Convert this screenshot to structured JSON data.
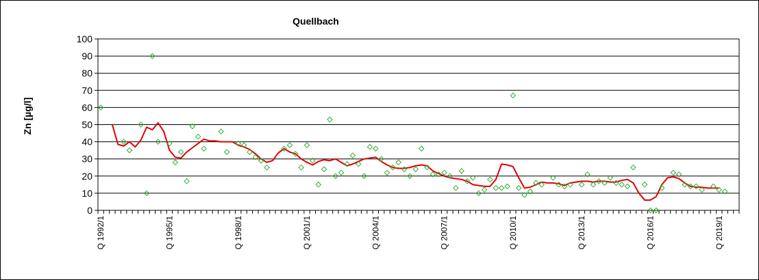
{
  "chart_data": {
    "type": "scatter",
    "title": "Quellbach",
    "ylabel": "Zn [µg/l]",
    "xlabel": "",
    "ylim": [
      0,
      100
    ],
    "yticks": [
      0,
      10,
      20,
      30,
      40,
      50,
      60,
      70,
      80,
      90,
      100
    ],
    "grid": "horizontal",
    "legend": "none",
    "x_categories_start": "Q 1992/1",
    "x_categories_count": 112,
    "x_tick_labels": [
      {
        "index": 0,
        "label": "Q 1992/1"
      },
      {
        "index": 12,
        "label": "Q 1995/1"
      },
      {
        "index": 24,
        "label": "Q 1998/1"
      },
      {
        "index": 36,
        "label": "Q 2001/1"
      },
      {
        "index": 48,
        "label": "Q 2004/1"
      },
      {
        "index": 60,
        "label": "Q 2007/1"
      },
      {
        "index": 72,
        "label": "Q 2010/1"
      },
      {
        "index": 84,
        "label": "Q 2013/1"
      },
      {
        "index": 96,
        "label": "Q 2016/1"
      },
      {
        "index": 108,
        "label": "Q 2019/1"
      }
    ],
    "colors": {
      "points": "#33aa33",
      "line": "#e00000",
      "grid": "#000000"
    },
    "series": [
      {
        "type": "scatter",
        "marker": "diamond-open",
        "values": [
          60,
          null,
          null,
          null,
          40,
          35,
          null,
          50,
          10,
          90,
          40,
          null,
          39,
          28,
          34,
          17,
          49,
          43,
          36,
          null,
          null,
          46,
          34,
          null,
          39,
          38,
          34,
          31,
          29,
          25,
          null,
          null,
          36,
          38,
          33,
          25,
          38,
          29,
          15,
          24,
          53,
          20,
          22,
          27,
          32,
          27,
          20,
          37,
          36,
          30,
          22,
          25,
          28,
          24,
          20,
          24,
          36,
          25,
          21,
          21,
          22,
          20,
          13,
          23,
          17,
          19,
          10,
          12,
          18,
          13,
          13,
          14,
          67,
          13,
          9,
          11,
          16,
          15,
          null,
          19,
          15,
          14,
          15,
          null,
          15,
          21,
          15,
          17,
          16,
          19,
          16,
          15,
          14,
          25,
          null,
          15,
          0,
          0,
          13,
          null,
          22,
          21,
          15,
          14,
          14,
          12,
          null,
          14,
          12,
          11,
          null,
          null
        ]
      },
      {
        "type": "line",
        "values": [
          null,
          null,
          50,
          38.5,
          37.5,
          40,
          37,
          41,
          48.5,
          47,
          51,
          46,
          35,
          31,
          30.5,
          34,
          36.5,
          39,
          41.5,
          40.5,
          40.5,
          40,
          40,
          40,
          38,
          37,
          35.5,
          33,
          30,
          28,
          29,
          33.5,
          36,
          34,
          33,
          30,
          28,
          26.5,
          28.5,
          29.5,
          29,
          30,
          28,
          26,
          27,
          28.5,
          30,
          30.5,
          31,
          28.5,
          26.5,
          25,
          24.5,
          24.5,
          25,
          26,
          26.5,
          26,
          23,
          21.5,
          20,
          19,
          18.5,
          18,
          17,
          15,
          14.5,
          14,
          14,
          18,
          27,
          26.5,
          25.5,
          19,
          13,
          13.5,
          15,
          16.5,
          16,
          16,
          15.5,
          14.5,
          16,
          16.5,
          17,
          17,
          16.5,
          17,
          17,
          16.5,
          16.5,
          17.5,
          18,
          16,
          10,
          6,
          6,
          8,
          15,
          19,
          19.5,
          18.5,
          16,
          14,
          13.5,
          13.5,
          13,
          13,
          13,
          null,
          null,
          null
        ]
      }
    ]
  }
}
